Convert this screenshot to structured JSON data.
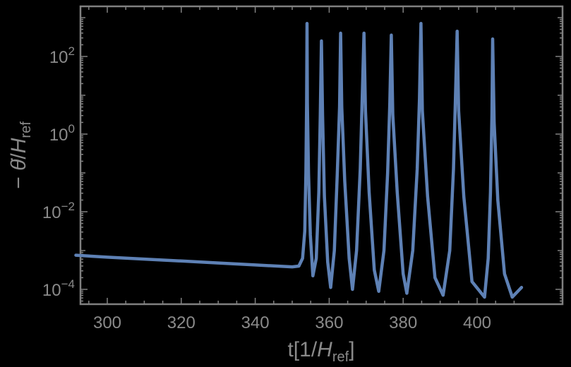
{
  "chart_data": {
    "type": "line",
    "title": "",
    "xlabel": "t[1/H_ref]",
    "ylabel": "-θ̇/H_ref",
    "xlabel_parts": {
      "main": "t[1/",
      "italic": "H",
      "sub": "ref",
      "close": "]"
    },
    "ylabel_parts": {
      "prefix": "− ",
      "theta": "θ̇",
      "slash": "/",
      "italic": "H",
      "sub": "ref"
    },
    "xlim": [
      290,
      413
    ],
    "ylim_log10": [
      -4.6,
      3.0
    ],
    "yscale": "log",
    "grid": false,
    "legend": null,
    "x_ticks": [
      300,
      320,
      340,
      360,
      380,
      400
    ],
    "x_tick_labels": [
      "300",
      "320",
      "340",
      "360",
      "380",
      "400"
    ],
    "y_ticks_log10": [
      2,
      0,
      -2,
      -4
    ],
    "y_tick_labels": [
      {
        "base": "10",
        "exp": "2"
      },
      {
        "base": "10",
        "exp": "0"
      },
      {
        "base": "10",
        "exp": "−2"
      },
      {
        "base": "10",
        "exp": "−4"
      }
    ],
    "series": [
      {
        "name": "-thetadot/Href",
        "color": "#5e81b5",
        "points_log10": [
          [
            291.5,
            -3.12
          ],
          [
            300,
            -3.17
          ],
          [
            310,
            -3.22
          ],
          [
            320,
            -3.27
          ],
          [
            330,
            -3.32
          ],
          [
            340,
            -3.37
          ],
          [
            350,
            -3.42
          ],
          [
            351.8,
            -3.4
          ],
          [
            352.8,
            -3.2
          ],
          [
            353.4,
            -2.5
          ],
          [
            353.7,
            -1.0
          ],
          [
            353.9,
            0.8
          ],
          [
            354.0,
            2.85
          ],
          [
            354.1,
            0.8
          ],
          [
            354.4,
            -1.0
          ],
          [
            354.9,
            -2.6
          ],
          [
            355.6,
            -3.65
          ],
          [
            356.5,
            -3.2
          ],
          [
            357.2,
            -1.5
          ],
          [
            357.6,
            0.5
          ],
          [
            357.9,
            2.4
          ],
          [
            358.2,
            0.5
          ],
          [
            358.7,
            -1.6
          ],
          [
            359.6,
            -3.3
          ],
          [
            360.4,
            -3.95
          ],
          [
            361.4,
            -3.0
          ],
          [
            362.2,
            -1.0
          ],
          [
            362.8,
            0.7
          ],
          [
            363.1,
            2.6
          ],
          [
            363.4,
            0.7
          ],
          [
            364.2,
            -1.2
          ],
          [
            365.4,
            -3.2
          ],
          [
            366.3,
            -4.0
          ],
          [
            367.4,
            -3.0
          ],
          [
            368.4,
            -0.9
          ],
          [
            368.9,
            0.8
          ],
          [
            369.4,
            2.6
          ],
          [
            369.8,
            0.6
          ],
          [
            370.8,
            -1.5
          ],
          [
            372.2,
            -3.5
          ],
          [
            373.4,
            -4.05
          ],
          [
            374.8,
            -3.0
          ],
          [
            375.8,
            -1.0
          ],
          [
            376.4,
            0.8
          ],
          [
            376.8,
            2.55
          ],
          [
            377.2,
            0.5
          ],
          [
            378.4,
            -1.5
          ],
          [
            380.0,
            -3.6
          ],
          [
            381.0,
            -4.1
          ],
          [
            382.6,
            -3.0
          ],
          [
            383.8,
            -0.9
          ],
          [
            384.4,
            0.9
          ],
          [
            384.8,
            2.85
          ],
          [
            385.2,
            0.6
          ],
          [
            386.6,
            -1.6
          ],
          [
            388.6,
            -3.7
          ],
          [
            390.8,
            -4.15
          ],
          [
            392.6,
            -3.0
          ],
          [
            393.6,
            -0.9
          ],
          [
            394.1,
            0.8
          ],
          [
            394.6,
            2.65
          ],
          [
            395.0,
            0.6
          ],
          [
            396.4,
            -1.6
          ],
          [
            398.6,
            -3.8
          ],
          [
            402.0,
            -4.2
          ],
          [
            403.0,
            -3.2
          ],
          [
            403.6,
            -1.5
          ],
          [
            404.0,
            0.5
          ],
          [
            404.2,
            2.45
          ],
          [
            404.6,
            0.3
          ],
          [
            405.6,
            -1.7
          ],
          [
            407.4,
            -3.6
          ],
          [
            409.5,
            -4.2
          ],
          [
            411.5,
            -4.0
          ],
          [
            412.0,
            -3.95
          ]
        ],
        "peaks": [
          {
            "t": 354.0,
            "log10_value": 2.85
          },
          {
            "t": 357.9,
            "log10_value": 2.4
          },
          {
            "t": 363.1,
            "log10_value": 2.6
          },
          {
            "t": 369.4,
            "log10_value": 2.6
          },
          {
            "t": 376.8,
            "log10_value": 2.55
          },
          {
            "t": 384.8,
            "log10_value": 2.85
          },
          {
            "t": 394.6,
            "log10_value": 2.65
          },
          {
            "t": 404.2,
            "log10_value": 2.45
          }
        ]
      }
    ]
  },
  "style": {
    "background": "#000000",
    "axis_color": "#808080",
    "text_color": "#8a8a8a",
    "line_color": "#5e81b5"
  }
}
